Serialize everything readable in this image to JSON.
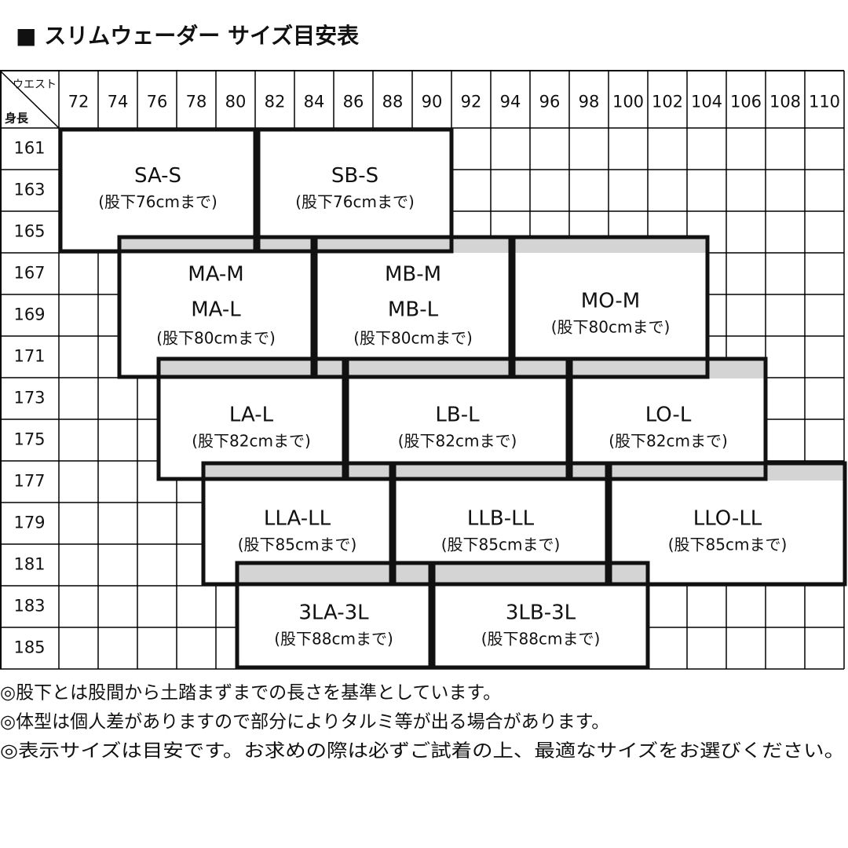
{
  "title": "■ スリムウェーダー サイズ目安表",
  "table": {
    "corner_col": "ウエスト",
    "corner_row": "身長",
    "columns": [
      72,
      74,
      76,
      78,
      80,
      82,
      84,
      86,
      88,
      90,
      92,
      94,
      96,
      98,
      100,
      102,
      104,
      106,
      108,
      110
    ],
    "rows": [
      161,
      163,
      165,
      167,
      169,
      171,
      173,
      175,
      177,
      179,
      181,
      183,
      185
    ]
  },
  "sizes": [
    {
      "names": [
        "SA-S"
      ],
      "note": "(股下76cmまで)"
    },
    {
      "names": [
        "SB-S"
      ],
      "note": "(股下76cmまで)"
    },
    {
      "names": [
        "MA-M",
        "MA-L"
      ],
      "note": "(股下80cmまで)"
    },
    {
      "names": [
        "MB-M",
        "MB-L"
      ],
      "note": "(股下80cmまで)"
    },
    {
      "names": [
        "MO-M"
      ],
      "note": "(股下80cmまで)"
    },
    {
      "names": [
        "LA-L"
      ],
      "note": "(股下82cmまで)"
    },
    {
      "names": [
        "LB-L"
      ],
      "note": "(股下82cmまで)"
    },
    {
      "names": [
        "LO-L"
      ],
      "note": "(股下82cmまで)"
    },
    {
      "names": [
        "LLA-LL"
      ],
      "note": "(股下85cmまで)"
    },
    {
      "names": [
        "LLB-LL"
      ],
      "note": "(股下85cmまで)"
    },
    {
      "names": [
        "LLO-LL"
      ],
      "note": "(股下85cmまで)"
    },
    {
      "names": [
        "3LA-3L"
      ],
      "note": "(股下88cmまで)"
    },
    {
      "names": [
        "3LB-3L"
      ],
      "note": "(股下88cmまで)"
    }
  ],
  "notes": [
    "◎股下とは股間から土踏まずまでの長さを基準としています。",
    "◎体型は個人差がありますので部分によりタルミ等が出る場合があります。",
    "◎表示サイズは目安です。お求めの際は必ずご試着の上、最適なサイズをお選びください。"
  ]
}
